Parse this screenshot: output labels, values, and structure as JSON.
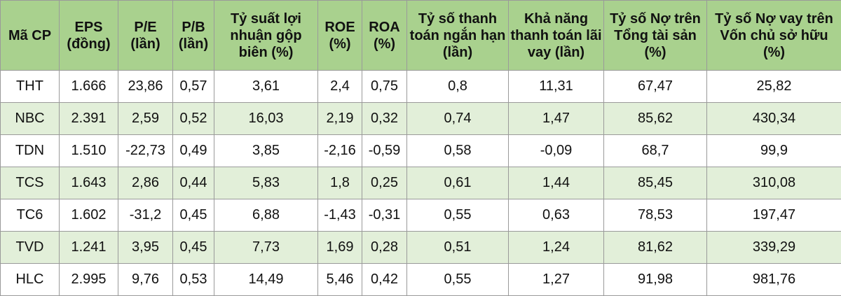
{
  "table": {
    "headers": [
      "Mã CP",
      "EPS (đồng)",
      "P/E (lần)",
      "P/B (lần)",
      "Tỷ suất lợi nhuận gộp biên (%)",
      "ROE (%)",
      "ROA (%)",
      "Tỷ số thanh toán ngắn hạn (lần)",
      "Khả năng thanh toán lãi vay (lần)",
      "Tỷ số Nợ trên Tổng tài sản (%)",
      "Tỷ số Nợ vay trên Vốn chủ sở hữu (%)"
    ],
    "rows": [
      [
        "THT",
        "1.666",
        "23,86",
        "0,57",
        "3,61",
        "2,4",
        "0,75",
        "0,8",
        "11,31",
        "67,47",
        "25,82"
      ],
      [
        "NBC",
        "2.391",
        "2,59",
        "0,52",
        "16,03",
        "2,19",
        "0,32",
        "0,74",
        "1,47",
        "85,62",
        "430,34"
      ],
      [
        "TDN",
        "1.510",
        "-22,73",
        "0,49",
        "3,85",
        "-2,16",
        "-0,59",
        "0,58",
        "-0,09",
        "68,7",
        "99,9"
      ],
      [
        "TCS",
        "1.643",
        "2,86",
        "0,44",
        "5,83",
        "1,8",
        "0,25",
        "0,61",
        "1,44",
        "85,45",
        "310,08"
      ],
      [
        "TC6",
        "1.602",
        "-31,2",
        "0,45",
        "6,88",
        "-1,43",
        "-0,31",
        "0,55",
        "0,63",
        "78,53",
        "197,47"
      ],
      [
        "TVD",
        "1.241",
        "3,95",
        "0,45",
        "7,73",
        "1,69",
        "0,28",
        "0,51",
        "1,24",
        "81,62",
        "339,29"
      ],
      [
        "HLC",
        "2.995",
        "9,76",
        "0,53",
        "14,49",
        "5,46",
        "0,42",
        "0,55",
        "1,27",
        "91,98",
        "981,76"
      ]
    ]
  },
  "colors": {
    "header_bg": "#a9d18e",
    "row_alt_bg": "#e2efd9",
    "border": "#9a9a9a"
  }
}
